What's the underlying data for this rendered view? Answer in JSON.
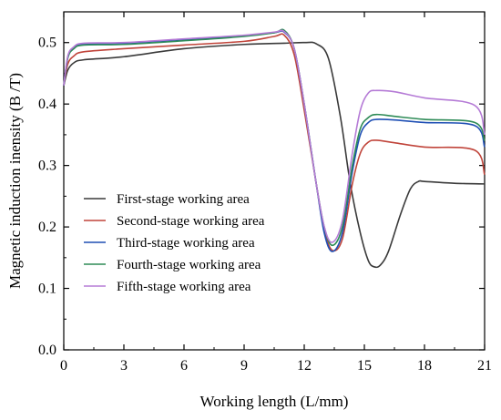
{
  "chart_data": {
    "type": "line",
    "xlabel": "Working length (L/mm)",
    "ylabel": "Magnetic induction inensity (B /T)",
    "xlim": [
      0,
      21
    ],
    "ylim": [
      0,
      0.55
    ],
    "xticks": [
      0,
      3,
      6,
      9,
      12,
      15,
      18,
      21
    ],
    "yticks": [
      0.0,
      0.1,
      0.2,
      0.3,
      0.4,
      0.5
    ],
    "xtick_labels": [
      "0",
      "3",
      "6",
      "9",
      "12",
      "15",
      "18",
      "21"
    ],
    "ytick_labels": [
      "0.0",
      "0.1",
      "0.2",
      "0.3",
      "0.4",
      "0.5"
    ],
    "legend_position": "lower-left",
    "grid": false,
    "series": [
      {
        "name": "First-stage working area",
        "color": "#3a3a3a",
        "x": [
          0,
          0.2,
          0.5,
          1.0,
          3.0,
          6.0,
          9.0,
          11.0,
          12.0,
          12.6,
          13.2,
          13.8,
          14.3,
          14.8,
          15.2,
          15.5,
          15.8,
          16.2,
          16.8,
          17.3,
          17.7,
          18.0,
          19.5,
          21.0
        ],
        "y": [
          0.43,
          0.455,
          0.467,
          0.472,
          0.477,
          0.49,
          0.497,
          0.499,
          0.5,
          0.498,
          0.475,
          0.38,
          0.27,
          0.19,
          0.145,
          0.135,
          0.138,
          0.16,
          0.22,
          0.262,
          0.274,
          0.274,
          0.271,
          0.27
        ]
      },
      {
        "name": "Second-stage working area",
        "color": "#c0443a",
        "x": [
          0,
          0.2,
          0.5,
          1.0,
          3.0,
          6.0,
          9.0,
          10.5,
          11.0,
          11.5,
          12.0,
          12.6,
          13.0,
          13.4,
          13.9,
          14.4,
          14.8,
          15.2,
          15.6,
          16.5,
          18.0,
          20.5,
          21.0
        ],
        "y": [
          0.43,
          0.465,
          0.478,
          0.485,
          0.49,
          0.496,
          0.502,
          0.51,
          0.512,
          0.48,
          0.39,
          0.27,
          0.195,
          0.162,
          0.18,
          0.27,
          0.32,
          0.338,
          0.341,
          0.337,
          0.33,
          0.325,
          0.285
        ]
      },
      {
        "name": "Third-stage working area",
        "color": "#1f4fb4",
        "x": [
          0,
          0.2,
          0.5,
          1.0,
          3.0,
          6.0,
          9.0,
          10.5,
          11.0,
          11.5,
          12.0,
          12.6,
          13.0,
          13.4,
          13.9,
          14.4,
          14.8,
          15.2,
          15.6,
          16.5,
          18.0,
          20.5,
          21.0
        ],
        "y": [
          0.43,
          0.475,
          0.492,
          0.498,
          0.499,
          0.505,
          0.511,
          0.516,
          0.517,
          0.49,
          0.4,
          0.27,
          0.19,
          0.16,
          0.19,
          0.29,
          0.35,
          0.37,
          0.375,
          0.374,
          0.37,
          0.365,
          0.33
        ]
      },
      {
        "name": "Fourth-stage working area",
        "color": "#2e8b57",
        "x": [
          0,
          0.2,
          0.5,
          1.0,
          3.0,
          6.0,
          9.0,
          10.5,
          11.0,
          11.5,
          12.0,
          12.6,
          13.0,
          13.4,
          13.9,
          14.4,
          14.8,
          15.2,
          15.6,
          16.5,
          18.0,
          20.5,
          21.0
        ],
        "y": [
          0.43,
          0.475,
          0.49,
          0.496,
          0.497,
          0.503,
          0.51,
          0.516,
          0.52,
          0.49,
          0.4,
          0.27,
          0.2,
          0.17,
          0.2,
          0.3,
          0.36,
          0.378,
          0.383,
          0.38,
          0.375,
          0.37,
          0.34
        ]
      },
      {
        "name": "Fifth-stage working area",
        "color": "#b57bd6",
        "x": [
          0,
          0.2,
          0.5,
          1.0,
          3.0,
          6.0,
          9.0,
          10.5,
          11.0,
          11.5,
          12.0,
          12.6,
          13.0,
          13.4,
          13.9,
          14.4,
          14.8,
          15.2,
          15.6,
          16.5,
          18.0,
          20.5,
          21.0
        ],
        "y": [
          0.43,
          0.478,
          0.493,
          0.499,
          0.5,
          0.506,
          0.512,
          0.517,
          0.518,
          0.49,
          0.4,
          0.27,
          0.2,
          0.175,
          0.21,
          0.32,
          0.39,
          0.418,
          0.422,
          0.42,
          0.41,
          0.398,
          0.35
        ]
      }
    ]
  }
}
